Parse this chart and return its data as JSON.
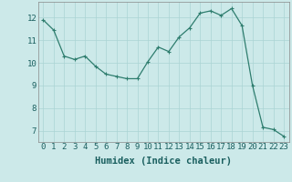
{
  "title": "",
  "xlabel": "Humidex (Indice chaleur)",
  "x": [
    0,
    1,
    2,
    3,
    4,
    5,
    6,
    7,
    8,
    9,
    10,
    11,
    12,
    13,
    14,
    15,
    16,
    17,
    18,
    19,
    20,
    21,
    22,
    23
  ],
  "y": [
    11.9,
    11.45,
    10.3,
    10.15,
    10.3,
    9.85,
    9.5,
    9.4,
    9.3,
    9.3,
    10.05,
    10.7,
    10.5,
    11.15,
    11.55,
    12.2,
    12.3,
    12.1,
    12.4,
    11.65,
    9.0,
    7.15,
    7.05,
    6.75
  ],
  "line_color": "#2e7d6e",
  "marker": "+",
  "marker_size": 3,
  "marker_linewidth": 0.8,
  "line_width": 0.9,
  "background_color": "#cce9e9",
  "grid_color": "#aad4d4",
  "ylim": [
    6.5,
    12.7
  ],
  "xlim": [
    -0.5,
    23.5
  ],
  "yticks": [
    7,
    8,
    9,
    10,
    11,
    12
  ],
  "xticks": [
    0,
    1,
    2,
    3,
    4,
    5,
    6,
    7,
    8,
    9,
    10,
    11,
    12,
    13,
    14,
    15,
    16,
    17,
    18,
    19,
    20,
    21,
    22,
    23
  ],
  "tick_fontsize": 6.5,
  "xlabel_fontsize": 7.5,
  "label_color": "#1a5f5f",
  "spine_color": "#888888"
}
